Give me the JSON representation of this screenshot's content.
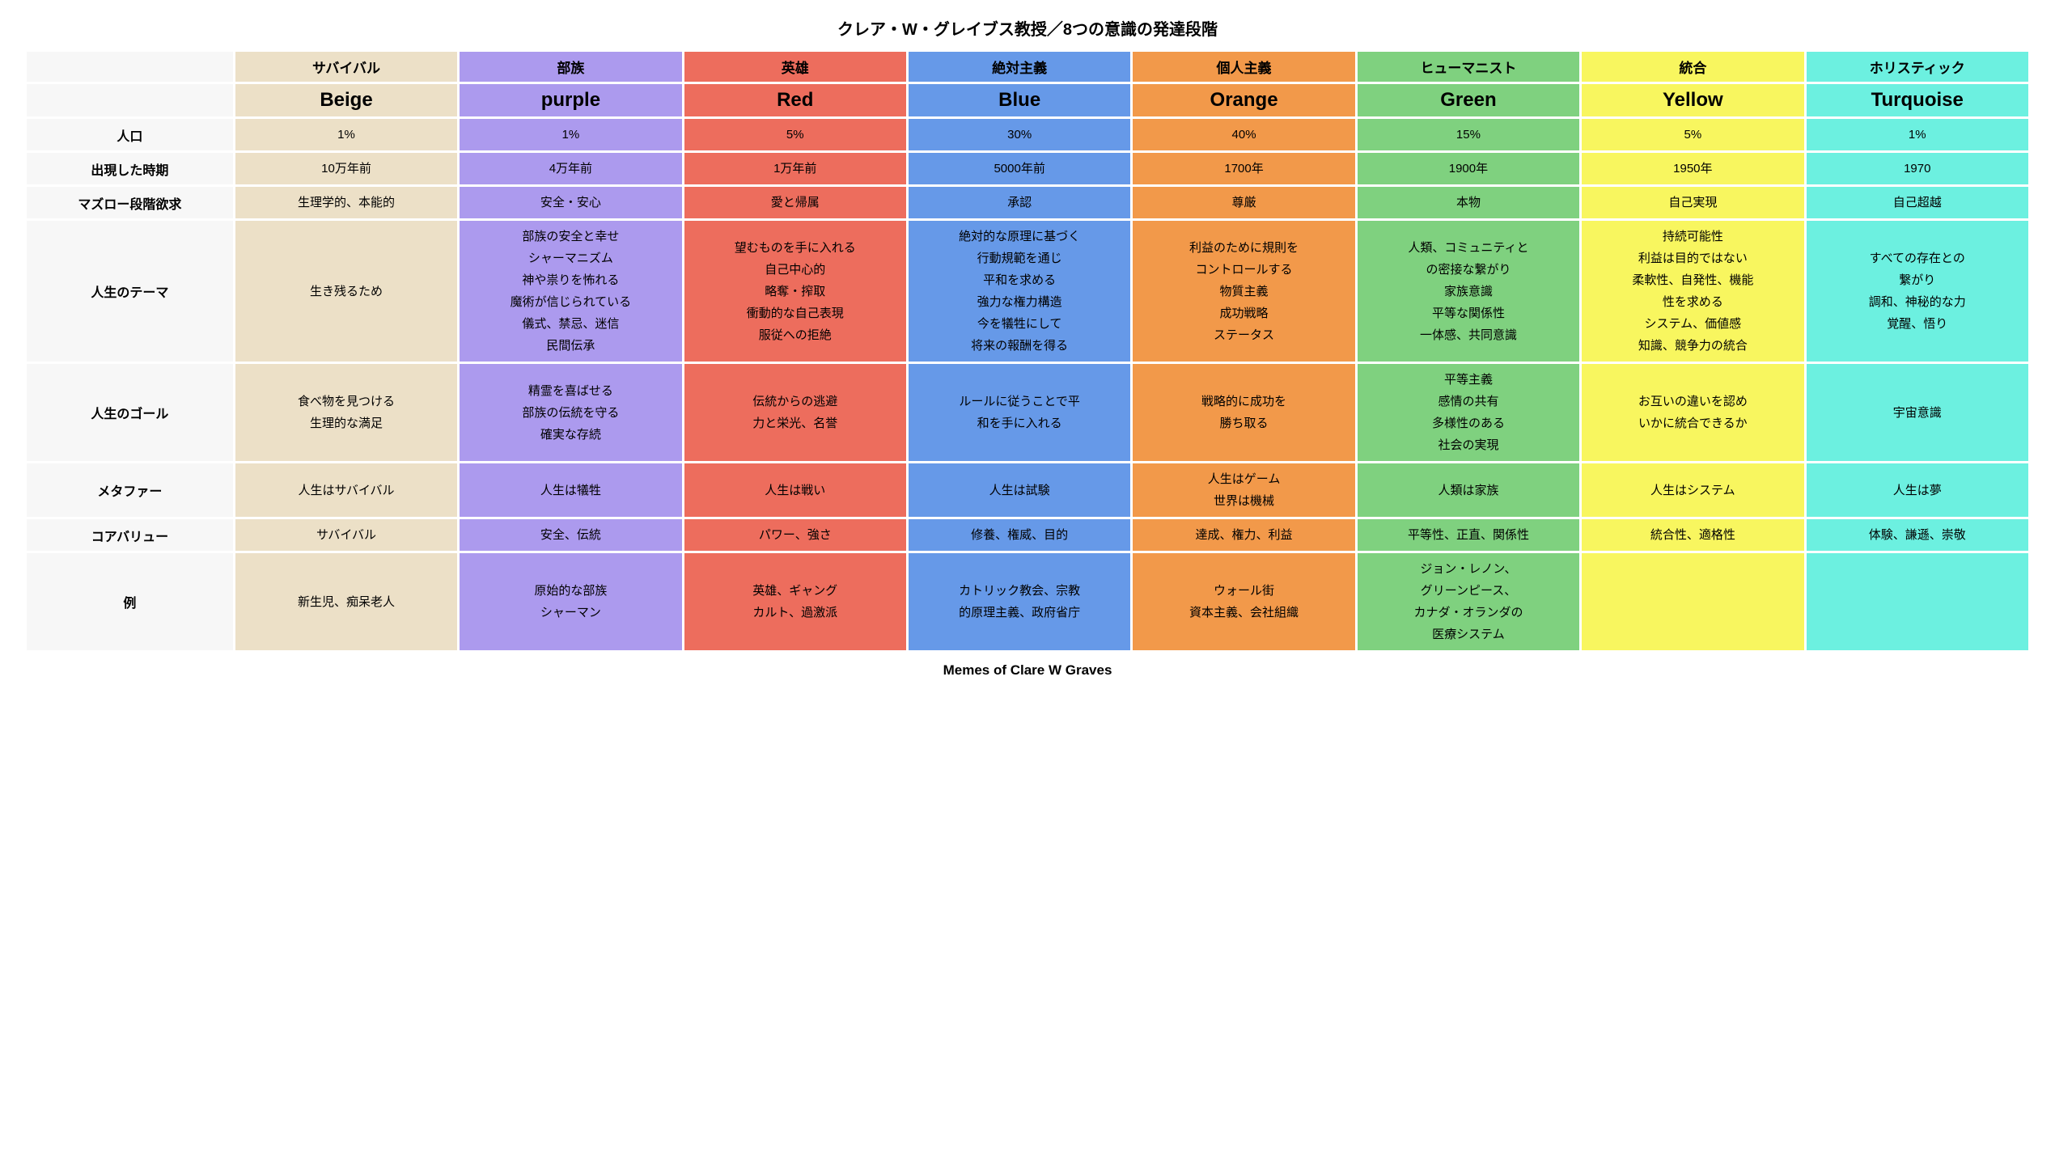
{
  "title": "クレア・W・グレイブス教授／8つの意識の発達段階",
  "footer": "Memes of Clare W Graves",
  "title_fontsize": 20,
  "footer_fontsize": 17,
  "row_label_fontsize": 16,
  "header_row_fontsize": 17,
  "color_row_fontsize": 24,
  "cell_fontsize": 15,
  "label_col_bg": "#f7f7f7",
  "background_color": "#ffffff",
  "label_col_width_pct": 10.4,
  "data_col_width_pct": 11.2,
  "columns": [
    {
      "header": "サバイバル",
      "color_name": "Beige",
      "bg": "#ece0c7"
    },
    {
      "header": "部族",
      "color_name": "purple",
      "bg": "#ac9aee"
    },
    {
      "header": "英雄",
      "color_name": "Red",
      "bg": "#ed6d5d"
    },
    {
      "header": "絶対主義",
      "color_name": "Blue",
      "bg": "#6699e8"
    },
    {
      "header": "個人主義",
      "color_name": "Orange",
      "bg": "#f2994a"
    },
    {
      "header": "ヒューマニスト",
      "color_name": "Green",
      "bg": "#7fd17f"
    },
    {
      "header": "統合",
      "color_name": "Yellow",
      "bg": "#f8f65f"
    },
    {
      "header": "ホリスティック",
      "color_name": "Turquoise",
      "bg": "#6cf0e0"
    }
  ],
  "rows": [
    {
      "label": "人口",
      "cells": [
        [
          "1%"
        ],
        [
          "1%"
        ],
        [
          "5%"
        ],
        [
          "30%"
        ],
        [
          "40%"
        ],
        [
          "15%"
        ],
        [
          "5%"
        ],
        [
          "1%"
        ]
      ]
    },
    {
      "label": "出現した時期",
      "cells": [
        [
          "10万年前"
        ],
        [
          "4万年前"
        ],
        [
          "1万年前"
        ],
        [
          "5000年前"
        ],
        [
          "1700年"
        ],
        [
          "1900年"
        ],
        [
          "1950年"
        ],
        [
          "1970"
        ]
      ]
    },
    {
      "label": "マズロー段階欲求",
      "cells": [
        [
          "生理学的、本能的"
        ],
        [
          "安全・安心"
        ],
        [
          "愛と帰属"
        ],
        [
          "承認"
        ],
        [
          "尊厳"
        ],
        [
          "本物"
        ],
        [
          "自己実現"
        ],
        [
          "自己超越"
        ]
      ]
    },
    {
      "label": "人生のテーマ",
      "cells": [
        [
          "生き残るため"
        ],
        [
          "部族の安全と幸せ",
          "シャーマニズム",
          "神や祟りを怖れる",
          "魔術が信じられている",
          "儀式、禁忌、迷信",
          "民間伝承"
        ],
        [
          "望むものを手に入れる",
          "自己中心的",
          "略奪・搾取",
          "衝動的な自己表現",
          "服従への拒絶"
        ],
        [
          "絶対的な原理に基づく",
          "行動規範を通じ",
          "平和を求める",
          "強力な権力構造",
          "今を犠牲にして",
          "将来の報酬を得る"
        ],
        [
          "利益のために規則を",
          "コントロールする",
          "物質主義",
          "成功戦略",
          "ステータス"
        ],
        [
          "人類、コミュニティと",
          "の密接な繋がり",
          "家族意識",
          "平等な関係性",
          "一体感、共同意識"
        ],
        [
          "持続可能性",
          "利益は目的ではない",
          "柔軟性、自発性、機能",
          "性を求める",
          "システム、価値感",
          "知識、競争力の統合"
        ],
        [
          "すべての存在との",
          "繋がり",
          "調和、神秘的な力",
          "覚醒、悟り"
        ]
      ]
    },
    {
      "label": "人生のゴール",
      "cells": [
        [
          "食べ物を見つける",
          "生理的な満足"
        ],
        [
          "精霊を喜ばせる",
          "部族の伝統を守る",
          "確実な存続"
        ],
        [
          "伝統からの逃避",
          "力と栄光、名誉"
        ],
        [
          "ルールに従うことで平",
          "和を手に入れる"
        ],
        [
          "戦略的に成功を",
          "勝ち取る"
        ],
        [
          "平等主義",
          "感情の共有",
          "多様性のある",
          "社会の実現"
        ],
        [
          "お互いの違いを認め",
          "いかに統合できるか"
        ],
        [
          "宇宙意識"
        ]
      ]
    },
    {
      "label": "メタファー",
      "cells": [
        [
          "人生はサバイバル"
        ],
        [
          "人生は犠牲"
        ],
        [
          "人生は戦い"
        ],
        [
          "人生は試験"
        ],
        [
          "人生はゲーム",
          "世界は機械"
        ],
        [
          "人類は家族"
        ],
        [
          "人生はシステム"
        ],
        [
          "人生は夢"
        ]
      ]
    },
    {
      "label": "コアバリュー",
      "cells": [
        [
          "サバイバル"
        ],
        [
          "安全、伝統"
        ],
        [
          "パワー、強さ"
        ],
        [
          "修養、権威、目的"
        ],
        [
          "達成、権力、利益"
        ],
        [
          "平等性、正直、関係性"
        ],
        [
          "統合性、適格性"
        ],
        [
          "体験、謙遜、崇敬"
        ]
      ]
    },
    {
      "label": "例",
      "cells": [
        [
          "新生児、痴呆老人"
        ],
        [
          "原始的な部族",
          "シャーマン"
        ],
        [
          "英雄、ギャング",
          "カルト、過激派"
        ],
        [
          "カトリック教会、宗教",
          "的原理主義、政府省庁"
        ],
        [
          "ウォール街",
          "資本主義、会社組織"
        ],
        [
          "ジョン・レノン、",
          "グリーンピース、",
          "カナダ・オランダの",
          "医療システム"
        ],
        [
          ""
        ],
        [
          ""
        ]
      ]
    }
  ]
}
